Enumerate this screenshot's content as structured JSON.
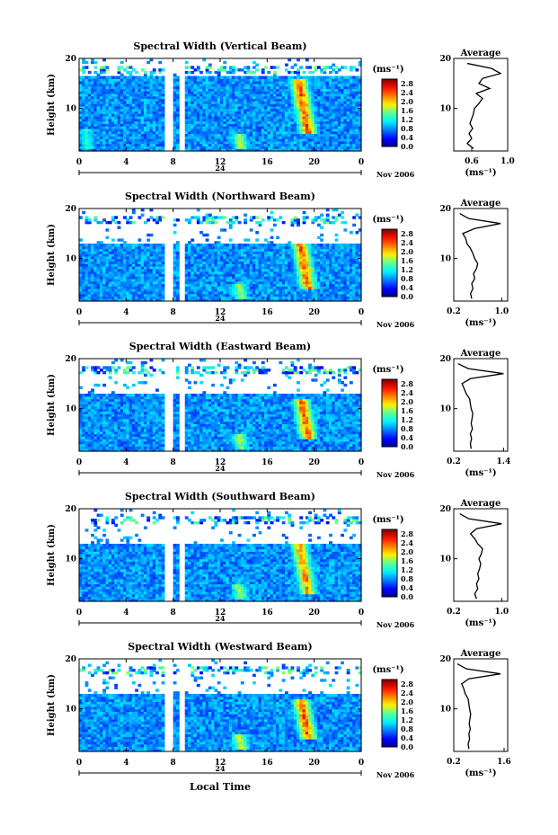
{
  "figure": {
    "xlabel_bottom": "Local Time",
    "day_label": "24",
    "month_label": "Nov 2006"
  },
  "colorbar": {
    "unit": "(ms⁻¹)",
    "ticks": [
      "0.0",
      "0.4",
      "0.8",
      "1.2",
      "1.6",
      "2.0",
      "2.4",
      "2.8"
    ],
    "vmin": 0.0,
    "vmax": 3.0
  },
  "chart_data": [
    {
      "type": "heatmap",
      "title": "Spectral Width (Vertical Beam)",
      "ylabel": "Height (km)",
      "xlim": [
        0,
        24
      ],
      "ylim": [
        1.5,
        20
      ],
      "xticks": [
        "0",
        "4",
        "8",
        "12",
        "16",
        "20",
        "0"
      ],
      "yticks": [
        "10",
        "20"
      ],
      "data_gaps_hours": [
        [
          7.3,
          8.0
        ],
        [
          8.5,
          9.0
        ]
      ],
      "enhanced_regions": [
        {
          "t": 19.4,
          "h_range": [
            5,
            16
          ],
          "peak": 2.8
        },
        {
          "t": 13.7,
          "h_range": [
            2,
            5
          ],
          "peak": 2.0
        },
        {
          "t": 0.7,
          "h_range": [
            2,
            6
          ],
          "peak": 1.6
        }
      ],
      "profile": {
        "title": "Average",
        "xlabel": "(ms⁻¹)",
        "xlim": [
          0.4,
          1.0
        ],
        "xticks": [
          "0.6",
          "1.0"
        ],
        "ylim": [
          1.5,
          20
        ],
        "yticks": [
          "10",
          "20"
        ],
        "height_km": [
          2,
          3,
          4,
          5,
          6,
          7,
          8,
          9,
          10,
          11,
          12,
          13,
          14,
          15,
          16,
          17,
          18,
          19
        ],
        "width_ms": [
          0.62,
          0.55,
          0.6,
          0.57,
          0.61,
          0.58,
          0.6,
          0.62,
          0.63,
          0.68,
          0.72,
          0.65,
          0.8,
          0.68,
          0.72,
          0.92,
          0.82,
          0.55
        ]
      }
    },
    {
      "type": "heatmap",
      "title": "Spectral Width (Northward Beam)",
      "ylabel": "Height (km)",
      "xlim": [
        0,
        24
      ],
      "ylim": [
        1.5,
        20
      ],
      "xticks": [
        "0",
        "4",
        "8",
        "12",
        "16",
        "20",
        "0"
      ],
      "yticks": [
        "10",
        "20"
      ],
      "data_gaps_hours": [
        [
          7.3,
          8.0
        ],
        [
          8.5,
          9.0
        ]
      ],
      "enhanced_regions": [
        {
          "t": 19.4,
          "h_range": [
            4,
            14
          ],
          "peak": 2.8
        },
        {
          "t": 13.7,
          "h_range": [
            2,
            5
          ],
          "peak": 2.0
        }
      ],
      "profile": {
        "title": "Average",
        "xlabel": "(ms⁻¹)",
        "xlim": [
          0.2,
          1.1
        ],
        "xticks": [
          "0.2",
          "1.0"
        ],
        "ylim": [
          1.5,
          20
        ],
        "yticks": [
          "10",
          "20"
        ],
        "height_km": [
          2,
          3,
          4,
          5,
          6,
          7,
          8,
          9,
          10,
          11,
          12,
          13,
          14,
          15,
          16,
          17,
          18,
          19
        ],
        "width_ms": [
          0.5,
          0.48,
          0.52,
          0.5,
          0.55,
          0.53,
          0.58,
          0.6,
          0.55,
          0.52,
          0.48,
          0.42,
          0.4,
          0.35,
          0.55,
          0.98,
          0.45,
          0.3
        ]
      }
    },
    {
      "type": "heatmap",
      "title": "Spectral Width (Eastward Beam)",
      "ylabel": "Height (km)",
      "xlim": [
        0,
        24
      ],
      "ylim": [
        1.5,
        20
      ],
      "xticks": [
        "0",
        "4",
        "8",
        "12",
        "16",
        "20",
        "0"
      ],
      "yticks": [
        "10",
        "20"
      ],
      "data_gaps_hours": [
        [
          7.3,
          8.0
        ],
        [
          8.5,
          9.0
        ]
      ],
      "enhanced_regions": [
        {
          "t": 19.4,
          "h_range": [
            4,
            12
          ],
          "peak": 2.8
        },
        {
          "t": 13.7,
          "h_range": [
            2,
            5
          ],
          "peak": 2.0
        }
      ],
      "profile": {
        "title": "Average",
        "xlabel": "(ms⁻¹)",
        "xlim": [
          0.2,
          1.5
        ],
        "xticks": [
          "0.2",
          "1.4"
        ],
        "ylim": [
          1.5,
          20
        ],
        "yticks": [
          "10",
          "20"
        ],
        "height_km": [
          2,
          3,
          4,
          5,
          6,
          7,
          8,
          9,
          10,
          11,
          12,
          13,
          14,
          15,
          16,
          17,
          18,
          19
        ],
        "width_ms": [
          0.62,
          0.6,
          0.63,
          0.6,
          0.65,
          0.62,
          0.64,
          0.66,
          0.62,
          0.6,
          0.58,
          0.5,
          0.45,
          0.4,
          0.6,
          1.4,
          0.55,
          0.3
        ]
      }
    },
    {
      "type": "heatmap",
      "title": "Spectral Width (Southward Beam)",
      "ylabel": "Height (km)",
      "xlim": [
        0,
        24
      ],
      "ylim": [
        1.5,
        20
      ],
      "xticks": [
        "0",
        "4",
        "8",
        "12",
        "16",
        "20",
        "0"
      ],
      "yticks": [
        "10",
        "20"
      ],
      "data_gaps_hours": [
        [
          7.3,
          8.0
        ],
        [
          8.5,
          9.0
        ]
      ],
      "enhanced_regions": [
        {
          "t": 19.4,
          "h_range": [
            3,
            14
          ],
          "peak": 2.6
        },
        {
          "t": 13.7,
          "h_range": [
            2,
            5
          ],
          "peak": 2.0
        }
      ],
      "profile": {
        "title": "Average",
        "xlabel": "(ms⁻¹)",
        "xlim": [
          0.2,
          1.1
        ],
        "xticks": [
          "0.2",
          "1.0"
        ],
        "ylim": [
          1.5,
          20
        ],
        "yticks": [
          "10",
          "20"
        ],
        "height_km": [
          2,
          3,
          4,
          5,
          6,
          7,
          8,
          9,
          10,
          11,
          12,
          13,
          14,
          15,
          16,
          17,
          18,
          19
        ],
        "width_ms": [
          0.58,
          0.55,
          0.6,
          0.58,
          0.62,
          0.6,
          0.63,
          0.65,
          0.62,
          0.66,
          0.68,
          0.6,
          0.55,
          0.48,
          0.58,
          1.0,
          0.45,
          0.3
        ]
      }
    },
    {
      "type": "heatmap",
      "title": "Spectral Width (Westward Beam)",
      "ylabel": "Height (km)",
      "xlim": [
        0,
        24
      ],
      "ylim": [
        1.5,
        20
      ],
      "xticks": [
        "0",
        "4",
        "8",
        "12",
        "16",
        "20",
        "0"
      ],
      "yticks": [
        "10",
        "20"
      ],
      "data_gaps_hours": [
        [
          7.3,
          8.0
        ],
        [
          8.5,
          9.0
        ]
      ],
      "enhanced_regions": [
        {
          "t": 19.4,
          "h_range": [
            4,
            12
          ],
          "peak": 2.8
        },
        {
          "t": 13.7,
          "h_range": [
            2,
            5
          ],
          "peak": 2.2
        }
      ],
      "profile": {
        "title": "Average",
        "xlabel": "(ms⁻¹)",
        "xlim": [
          0.2,
          1.7
        ],
        "xticks": [
          "0.2",
          "1.6"
        ],
        "ylim": [
          1.5,
          20
        ],
        "yticks": [
          "10",
          "20"
        ],
        "height_km": [
          2,
          3,
          4,
          5,
          6,
          7,
          8,
          9,
          10,
          11,
          12,
          13,
          14,
          15,
          16,
          17,
          18,
          19
        ],
        "width_ms": [
          0.62,
          0.6,
          0.64,
          0.62,
          0.66,
          0.63,
          0.65,
          0.67,
          0.64,
          0.62,
          0.6,
          0.52,
          0.48,
          0.42,
          0.62,
          1.5,
          0.55,
          0.3
        ]
      }
    }
  ]
}
